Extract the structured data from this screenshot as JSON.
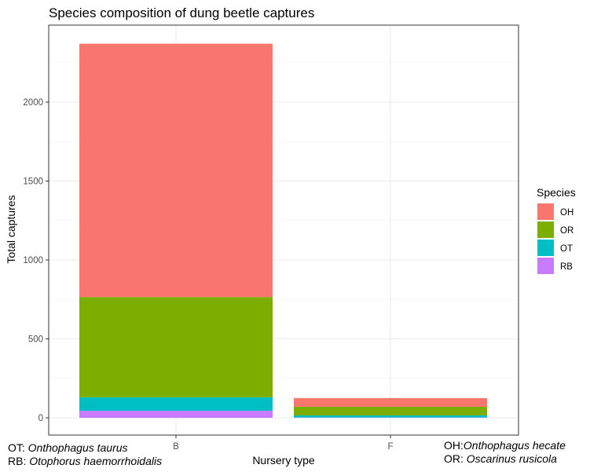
{
  "chart_data": {
    "type": "bar",
    "stacked": true,
    "title": "Species composition of dung beetle captures",
    "xlabel": "Nursery type",
    "ylabel": "Total captures",
    "categories": [
      "B",
      "F"
    ],
    "ylim": [
      0,
      2440
    ],
    "yticks": [
      0,
      500,
      1000,
      1500,
      2000
    ],
    "grid": true,
    "legend_title": "Species",
    "legend_position": "right",
    "series": [
      {
        "name": "RB",
        "color": "#C77CFF",
        "values": [
          45,
          2
        ]
      },
      {
        "name": "OT",
        "color": "#00BFC4",
        "values": [
          85,
          13
        ]
      },
      {
        "name": "OR",
        "color": "#7CAE00",
        "values": [
          635,
          55
        ]
      },
      {
        "name": "OH",
        "color": "#F8766D",
        "values": [
          1605,
          55
        ]
      }
    ],
    "legend_order": [
      "OH",
      "OR",
      "OT",
      "RB"
    ]
  },
  "captions": {
    "left": [
      {
        "abbr": "OT: ",
        "name": "Onthophagus taurus"
      },
      {
        "abbr": "RB: ",
        "name": "Otophorus haemorrhoidalis"
      }
    ],
    "right": [
      {
        "abbr": "OH:",
        "name": "Onthophagus hecate"
      },
      {
        "abbr": "OR: ",
        "name": "Oscarinus rusicola"
      }
    ]
  }
}
